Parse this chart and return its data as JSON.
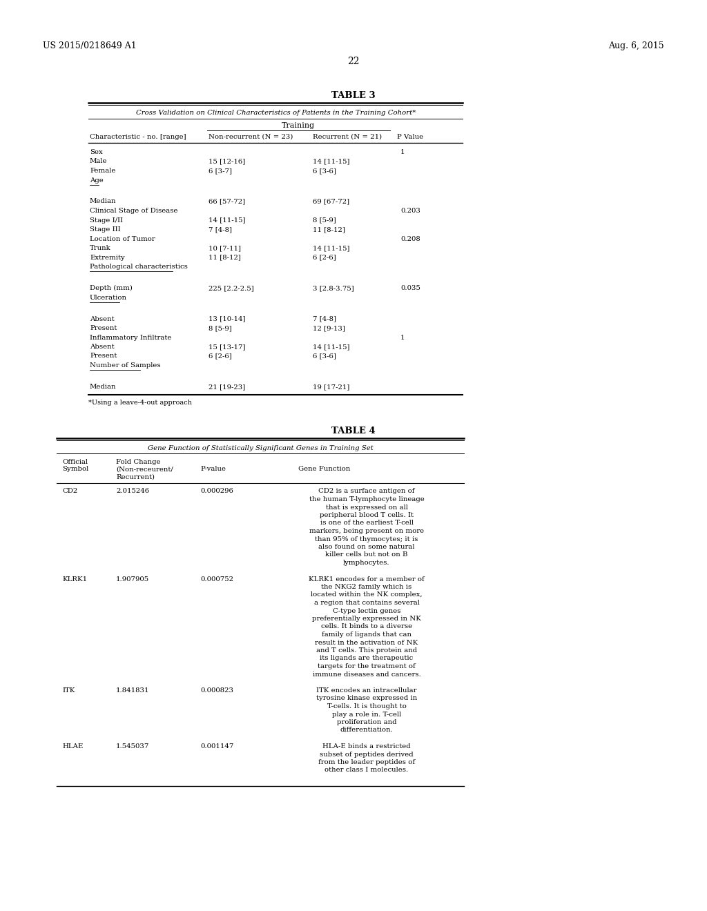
{
  "patent_number": "US 2015/0218649 A1",
  "patent_date": "Aug. 6, 2015",
  "page_number": "22",
  "background_color": "#ffffff",
  "table3": {
    "title": "TABLE 3",
    "subtitle": "Cross Validation on Clinical Characteristics of Patients in the Training Cohort*",
    "col_header_group": "Training",
    "rows": [
      {
        "label": "Sex",
        "col1": "",
        "col2": "",
        "pval": "1",
        "ul": false,
        "gap_before": false
      },
      {
        "label": "Male",
        "col1": "15 [12-16]",
        "col2": "14 [11-15]",
        "pval": "",
        "ul": false,
        "gap_before": false
      },
      {
        "label": "Female",
        "col1": "6 [3-7]",
        "col2": "6 [3-6]",
        "pval": "",
        "ul": false,
        "gap_before": false
      },
      {
        "label": "Age",
        "col1": "",
        "col2": "",
        "pval": "",
        "ul": true,
        "gap_before": false
      },
      {
        "label": "",
        "col1": "",
        "col2": "",
        "pval": "",
        "ul": false,
        "gap_before": false
      },
      {
        "label": "Median",
        "col1": "66 [57-72]",
        "col2": "69 [67-72]",
        "pval": "",
        "ul": false,
        "gap_before": true
      },
      {
        "label": "Clinical Stage of Disease",
        "col1": "",
        "col2": "",
        "pval": "0.203",
        "ul": false,
        "gap_before": false
      },
      {
        "label": "Stage I/II",
        "col1": "14 [11-15]",
        "col2": "8 [5-9]",
        "pval": "",
        "ul": false,
        "gap_before": false
      },
      {
        "label": "Stage III",
        "col1": "7 [4-8]",
        "col2": "11 [8-12]",
        "pval": "",
        "ul": false,
        "gap_before": false
      },
      {
        "label": "Location of Tumor",
        "col1": "",
        "col2": "",
        "pval": "0.208",
        "ul": false,
        "gap_before": false
      },
      {
        "label": "Trunk",
        "col1": "10 [7-11]",
        "col2": "14 [11-15]",
        "pval": "",
        "ul": false,
        "gap_before": false
      },
      {
        "label": "Extremity",
        "col1": "11 [8-12]",
        "col2": "6 [2-6]",
        "pval": "",
        "ul": false,
        "gap_before": false
      },
      {
        "label": "Pathological characteristics",
        "col1": "",
        "col2": "",
        "pval": "",
        "ul": true,
        "gap_before": false
      },
      {
        "label": "",
        "col1": "",
        "col2": "",
        "pval": "",
        "ul": false,
        "gap_before": false
      },
      {
        "label": "Depth (mm)",
        "col1": "225 [2.2-2.5]",
        "col2": "3 [2.8-3.75]",
        "pval": "0.035",
        "ul": false,
        "gap_before": true
      },
      {
        "label": "Ulceration",
        "col1": "",
        "col2": "",
        "pval": "",
        "ul": true,
        "gap_before": false
      },
      {
        "label": "",
        "col1": "",
        "col2": "",
        "pval": "",
        "ul": false,
        "gap_before": false
      },
      {
        "label": "Absent",
        "col1": "13 [10-14]",
        "col2": "7 [4-8]",
        "pval": "",
        "ul": false,
        "gap_before": true
      },
      {
        "label": "Present",
        "col1": "8 [5-9]",
        "col2": "12 [9-13]",
        "pval": "",
        "ul": false,
        "gap_before": false
      },
      {
        "label": "Inflammatory Infiltrate",
        "col1": "",
        "col2": "",
        "pval": "1",
        "ul": false,
        "gap_before": false
      },
      {
        "label": "Absent",
        "col1": "15 [13-17]",
        "col2": "14 [11-15]",
        "pval": "",
        "ul": false,
        "gap_before": false
      },
      {
        "label": "Present",
        "col1": "6 [2-6]",
        "col2": "6 [3-6]",
        "pval": "",
        "ul": false,
        "gap_before": false
      },
      {
        "label": "Number of Samples",
        "col1": "",
        "col2": "",
        "pval": "",
        "ul": true,
        "gap_before": false
      },
      {
        "label": "",
        "col1": "",
        "col2": "",
        "pval": "",
        "ul": false,
        "gap_before": false
      },
      {
        "label": "Median",
        "col1": "21 [19-23]",
        "col2": "19 [17-21]",
        "pval": "",
        "ul": false,
        "gap_before": true
      }
    ],
    "footnote": "*Using a leave-4-out approach"
  },
  "table4": {
    "title": "TABLE 4",
    "subtitle": "Gene Function of Statistically Significant Genes in Training Set",
    "rows": [
      {
        "symbol": "CD2",
        "fold_change": "2.015246",
        "pvalue": "0.000296",
        "func_lines": [
          "CD2 is a surface antigen of",
          "the human T-lymphocyte lineage",
          "that is expressed on all",
          "peripheral blood T cells. It",
          "is one of the earliest T-cell",
          "markers, being present on more",
          "than 95% of thymocytes; it is",
          "also found on some natural",
          "killer cells but not on B",
          "lymphocytes."
        ]
      },
      {
        "symbol": "KLRK1",
        "fold_change": "1.907905",
        "pvalue": "0.000752",
        "func_lines": [
          "KLRK1 encodes for a member of",
          "the NKG2 family which is",
          "located within the NK complex,",
          "a region that contains several",
          "C-type lectin genes",
          "preferentially expressed in NK",
          "cells. It binds to a diverse",
          "family of ligands that can",
          "result in the activation of NK",
          "and T cells. This protein and",
          "its ligands are therapeutic",
          "targets for the treatment of",
          "immune diseases and cancers."
        ]
      },
      {
        "symbol": "ITK",
        "fold_change": "1.841831",
        "pvalue": "0.000823",
        "func_lines": [
          "ITK encodes an intracellular",
          "tyrosine kinase expressed in",
          "T-cells. It is thought to",
          "play a role in. T-cell",
          "proliferation and",
          "differentiation."
        ]
      },
      {
        "symbol": "HLAE",
        "fold_change": "1.545037",
        "pvalue": "0.001147",
        "func_lines": [
          "HLA-E binds a restricted",
          "subset of peptides derived",
          "from the leader peptides of",
          "other class I molecules."
        ]
      }
    ]
  }
}
